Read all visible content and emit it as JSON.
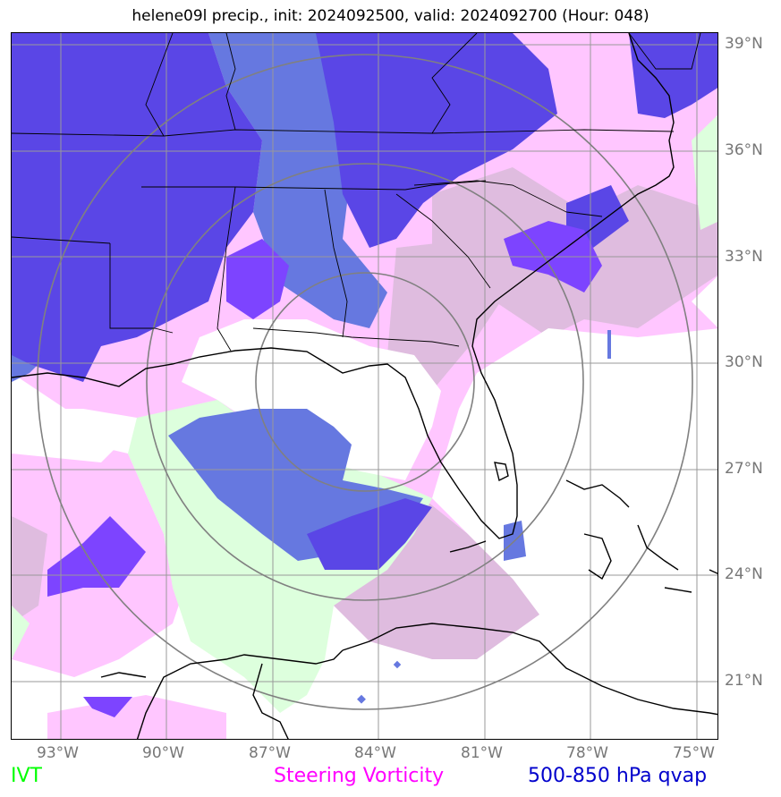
{
  "title": "helene09l precip., init: 2024092500, valid: 2024092700 (Hour: 048)",
  "lat_labels": [
    "39°N",
    "36°N",
    "33°N",
    "30°N",
    "27°N",
    "24°N",
    "21°N"
  ],
  "lon_labels": [
    "93°W",
    "90°W",
    "87°W",
    "84°W",
    "81°W",
    "78°W",
    "75°W"
  ],
  "legend": {
    "ivt": "IVT",
    "vorticity": "Steering Vorticity",
    "qvap": "500-850 hPa qvap"
  },
  "colors": {
    "ivt": "#00ff00",
    "vorticity": "#ff00ff",
    "qvap": "#0000cc",
    "ivt_fill": "#ddffdd",
    "vort_fill": "#ffc6ff",
    "vort_dark_fill": "#dfbcdf",
    "qvap_fill": "#6678e0",
    "qvap_dark_fill": "#5a46e6",
    "qvap_violet_fill": "#7d44ff",
    "grid": "#999999",
    "range_ring": "#808080",
    "coast": "#000000"
  }
}
